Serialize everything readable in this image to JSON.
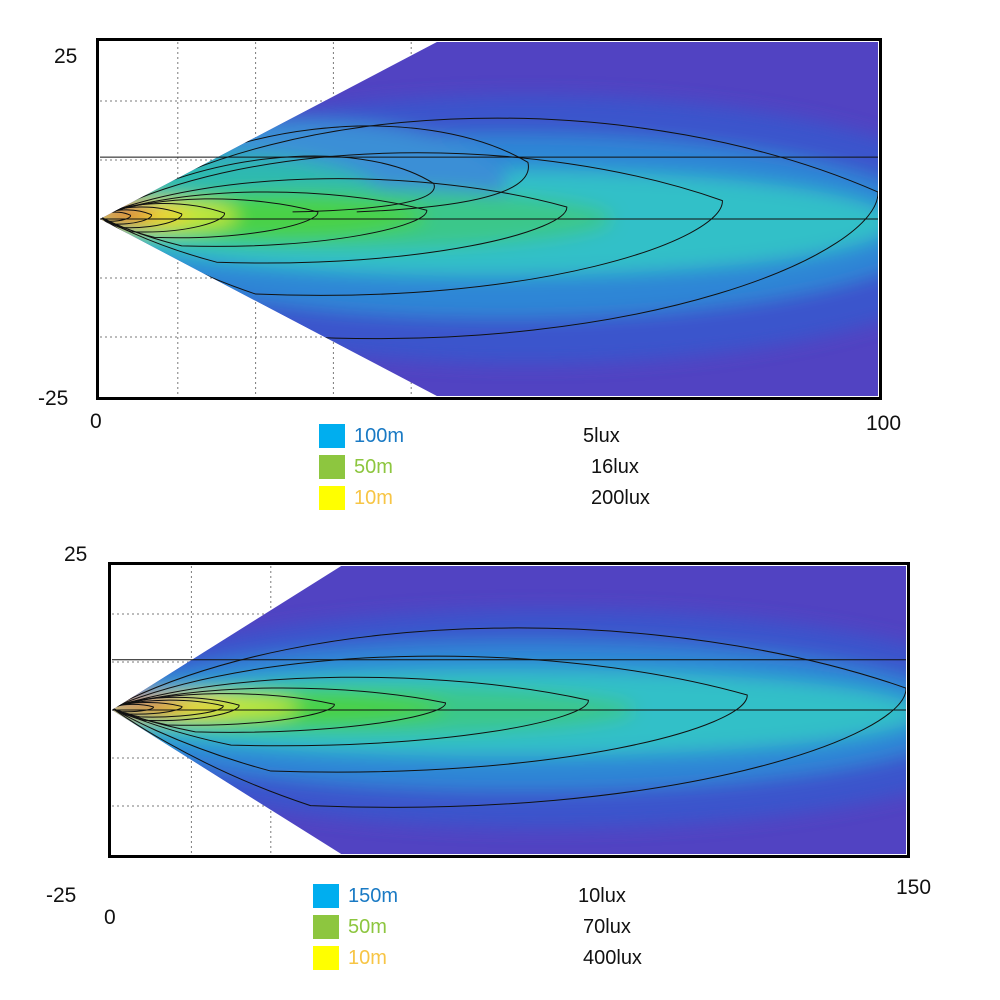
{
  "chart_data": [
    {
      "type": "heatmap",
      "title": "",
      "xlabel": "",
      "ylabel": "",
      "xlim": [
        0,
        100
      ],
      "ylim": [
        -25,
        25
      ],
      "x_tick_labels": [
        "0",
        "100"
      ],
      "y_tick_labels": [
        "25",
        "-25"
      ],
      "grid": true,
      "beam_half_angle_deg": 30,
      "hot_spot_x": 3,
      "wide_lobe_upper_extent_x": 55,
      "long_throw_reach_x": 100,
      "legend": [
        {
          "distance": "100m",
          "lux": "5lux",
          "color": "#00aeef"
        },
        {
          "distance": "50m",
          "lux": "16lux",
          "color": "#8dc63f"
        },
        {
          "distance": "10m",
          "lux": "200lux",
          "color": "#ffff00"
        }
      ]
    },
    {
      "type": "heatmap",
      "title": "",
      "xlabel": "",
      "ylabel": "",
      "xlim": [
        0,
        150
      ],
      "ylim": [
        -25,
        25
      ],
      "x_tick_labels": [
        "0",
        "150"
      ],
      "y_tick_labels": [
        "25",
        "-25"
      ],
      "grid": true,
      "beam_half_angle_deg": 30,
      "hot_spot_x": 6,
      "long_throw_reach_x": 150,
      "legend": [
        {
          "distance": "150m",
          "lux": "10lux",
          "color": "#00aeef"
        },
        {
          "distance": "50m",
          "lux": "70lux",
          "color": "#8dc63f"
        },
        {
          "distance": "10m",
          "lux": "400lux",
          "color": "#ffff00"
        }
      ]
    }
  ]
}
